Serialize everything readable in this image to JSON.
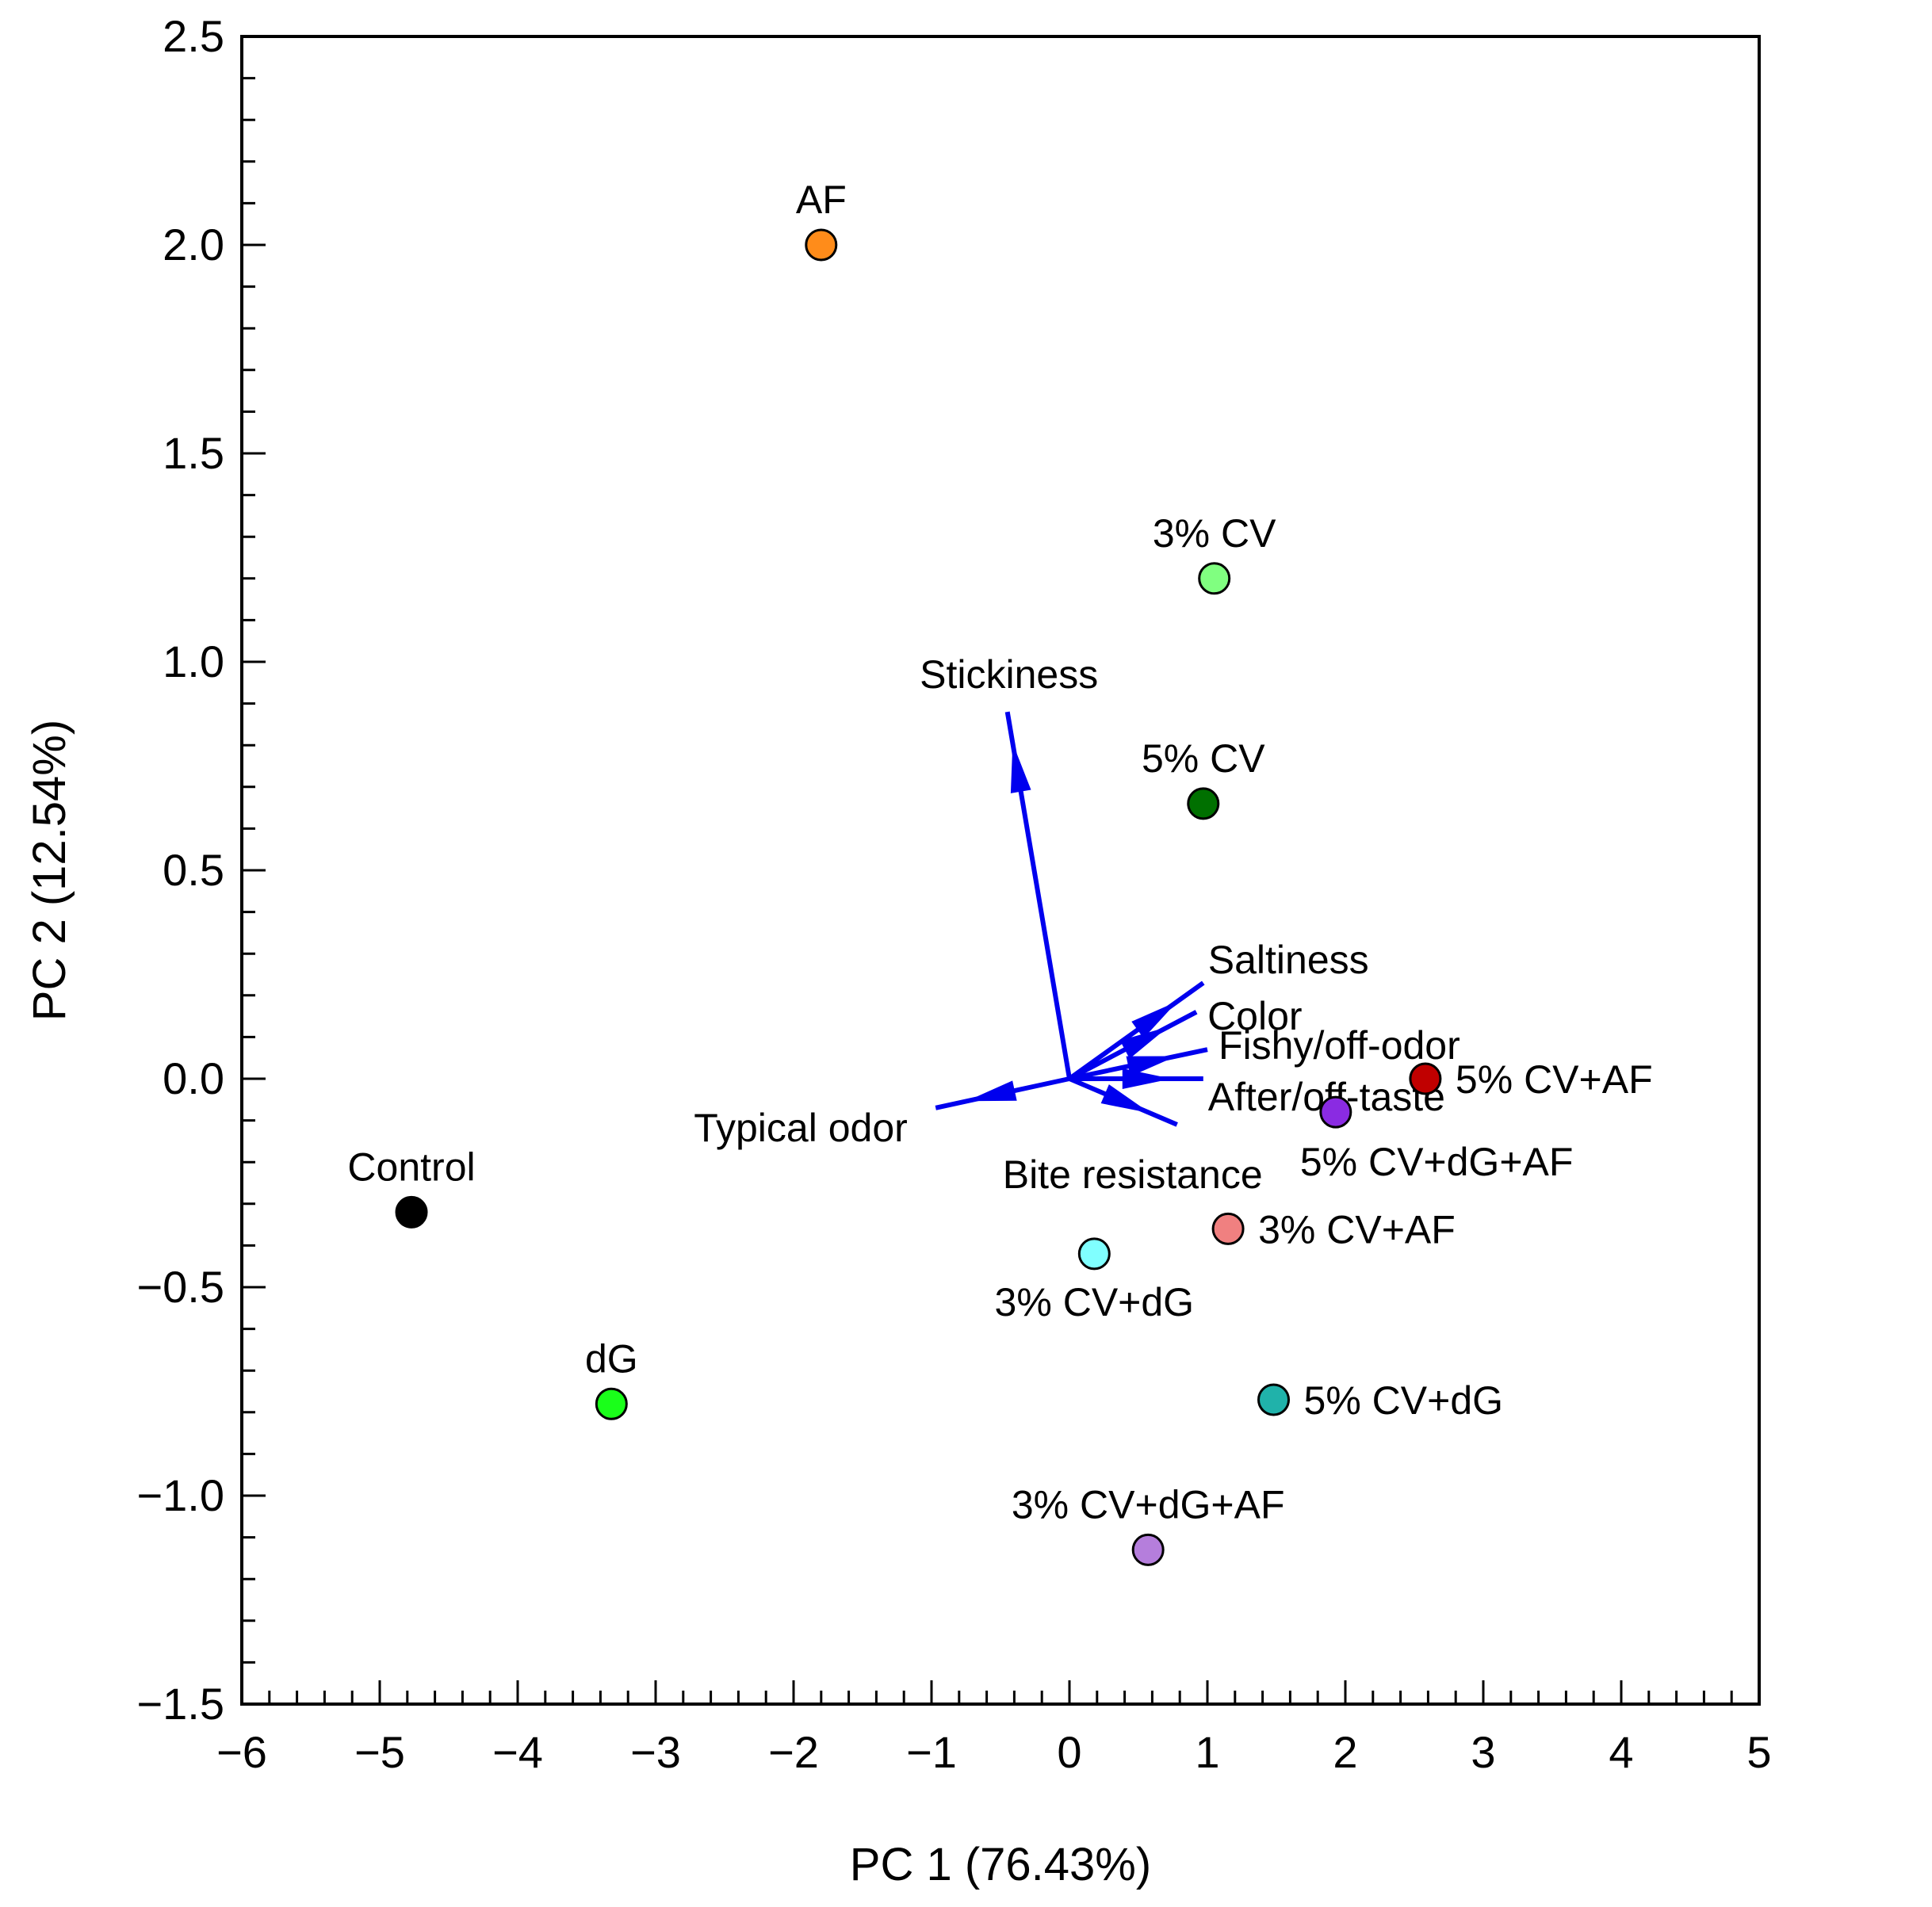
{
  "chart_data": {
    "type": "scatter",
    "title": "",
    "xlabel": "PC 1 (76.43%)",
    "ylabel": "PC 2 (12.54%)",
    "xlim": [
      -6,
      5
    ],
    "ylim": [
      -1.5,
      2.5
    ],
    "x_ticks": [
      -6,
      -5,
      -4,
      -3,
      -2,
      -1,
      0,
      1,
      2,
      3,
      4,
      5
    ],
    "x_tick_labels": [
      "−6",
      "−5",
      "−4",
      "−3",
      "−2",
      "−1",
      "0",
      "1",
      "2",
      "3",
      "4",
      "5"
    ],
    "y_ticks": [
      -1.5,
      -1.0,
      -0.5,
      0.0,
      0.5,
      1.0,
      1.5,
      2.0,
      2.5
    ],
    "y_tick_labels": [
      "−1.5",
      "−1.0",
      "−0.5",
      "0.0",
      "0.5",
      "1.0",
      "1.5",
      "2.0",
      "2.5"
    ],
    "grid": false,
    "points": [
      {
        "label": "AF",
        "x": -1.8,
        "y": 2.0,
        "color": "#ff8c1a",
        "label_pos": "above"
      },
      {
        "label": "3% CV",
        "x": 1.05,
        "y": 1.2,
        "color": "#80ff80",
        "label_pos": "above"
      },
      {
        "label": "5% CV",
        "x": 0.97,
        "y": 0.66,
        "color": "#007000",
        "label_pos": "above"
      },
      {
        "label": "5% CV+AF",
        "x": 2.58,
        "y": 0.0,
        "color": "#c00000",
        "label_pos": "right"
      },
      {
        "label": "5% CV+dG+AF",
        "x": 1.93,
        "y": -0.08,
        "color": "#8a2be2",
        "label_pos": "below-right"
      },
      {
        "label": "3% CV+AF",
        "x": 1.15,
        "y": -0.36,
        "color": "#f08080",
        "label_pos": "right"
      },
      {
        "label": "3% CV+dG",
        "x": 0.18,
        "y": -0.42,
        "color": "#80ffff",
        "label_pos": "below"
      },
      {
        "label": "5% CV+dG",
        "x": 1.48,
        "y": -0.77,
        "color": "#20b2aa",
        "label_pos": "right"
      },
      {
        "label": "3% CV+dG+AF",
        "x": 0.57,
        "y": -1.13,
        "color": "#b57edc",
        "label_pos": "above"
      },
      {
        "label": "Control",
        "x": -4.77,
        "y": -0.32,
        "color": "#000000",
        "label_pos": "above"
      },
      {
        "label": "dG",
        "x": -3.32,
        "y": -0.78,
        "color": "#1aff1a",
        "label_pos": "above"
      }
    ],
    "loading_vectors": [
      {
        "label": "Stickiness",
        "x": -0.45,
        "y": 0.88
      },
      {
        "label": "Saltiness",
        "x": 0.97,
        "y": 0.23
      },
      {
        "label": "Color",
        "x": 0.92,
        "y": 0.16
      },
      {
        "label": "Fishy/off-odor",
        "x": 1.0,
        "y": 0.07
      },
      {
        "label": "After/off-taste",
        "x": 0.97,
        "y": 0.0
      },
      {
        "label": "Bite resistance",
        "x": 0.78,
        "y": -0.11
      },
      {
        "label": "Typical odor",
        "x": -0.97,
        "y": -0.07
      }
    ],
    "vector_color": "#0000ee"
  }
}
